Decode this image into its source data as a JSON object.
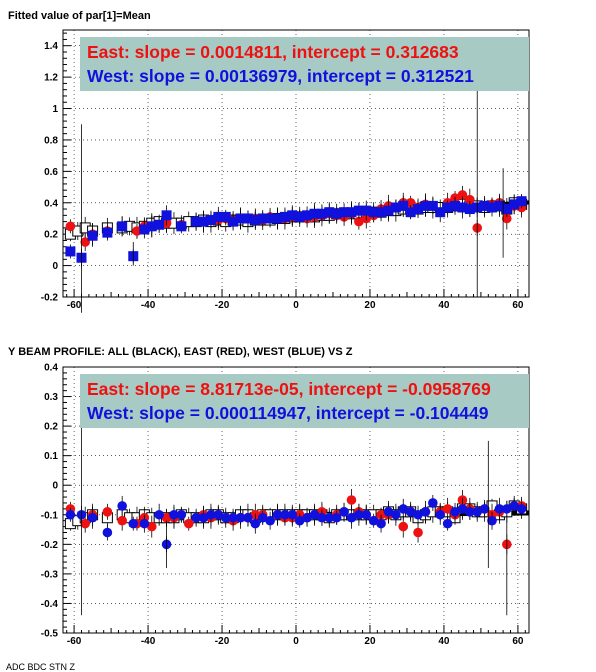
{
  "panels": [
    {
      "title": "Fitted value of par[1]=Mean",
      "ylim": [
        -0.2,
        1.5
      ],
      "yticks": [
        -0.2,
        0,
        0.2,
        0.4,
        0.6,
        0.8,
        1,
        1.2,
        1.4
      ],
      "ytick_labels": [
        "-0.2",
        "0",
        "0.2",
        "0.4",
        "0.6",
        "0.8",
        "1",
        "1.2",
        "1.4"
      ],
      "annotations": [
        {
          "text": "East: slope = 0.0014811, intercept = 0.312683",
          "color": "#ee1111"
        },
        {
          "text": "West: slope = 0.00136979, intercept = 0.312521",
          "color": "#1111dd"
        }
      ]
    },
    {
      "title": "Y BEAM PROFILE: ALL (BLACK), EAST (RED), WEST (BLUE) VS Z",
      "ylim": [
        -0.5,
        0.4
      ],
      "yticks": [
        -0.5,
        -0.4,
        -0.3,
        -0.2,
        -0.1,
        0,
        0.1,
        0.2,
        0.3,
        0.4
      ],
      "ytick_labels": [
        "-0.5",
        "-0.4",
        "-0.3",
        "-0.2",
        "-0.1",
        "0",
        "0.1",
        "0.2",
        "0.3",
        "0.4"
      ],
      "annotations": [
        {
          "text": "East: slope = 8.81713e-05, intercept = -0.0958769",
          "color": "#ee1111"
        },
        {
          "text": "West: slope = 0.000114947, intercept = -0.104449",
          "color": "#1111dd"
        }
      ]
    }
  ],
  "xlim": [
    -63,
    63
  ],
  "xticks": [
    -60,
    -40,
    -20,
    0,
    20,
    40,
    60
  ],
  "xtick_labels": [
    "-60",
    "-40",
    "-20",
    "0",
    "20",
    "40",
    "60"
  ],
  "bottom_text": "ADC  BDC  STN  Z         ",
  "chart_data": [
    {
      "type": "scatter",
      "title": "Fitted value of par[1]=Mean",
      "xlabel": "",
      "ylabel": "",
      "xlim": [
        -63,
        63
      ],
      "ylim": [
        -0.2,
        1.5
      ],
      "grid": true,
      "legend": "none",
      "fit_lines": [
        {
          "name": "East",
          "slope": 0.0014811,
          "intercept": 0.312683
        },
        {
          "name": "West",
          "slope": 0.00136979,
          "intercept": 0.312521
        }
      ],
      "series": [
        {
          "name": "All",
          "marker": "open-square",
          "color": "#000000",
          "x": [
            -61,
            -59,
            -57,
            -55,
            -51,
            -47,
            -45,
            -43,
            -41,
            -39,
            -37,
            -35,
            -33,
            -31,
            -29,
            -27,
            -25,
            -23,
            -21,
            -19,
            -17,
            -15,
            -13,
            -11,
            -9,
            -7,
            -5,
            -3,
            -1,
            1,
            3,
            5,
            7,
            9,
            11,
            13,
            15,
            17,
            19,
            21,
            23,
            25,
            27,
            29,
            31,
            33,
            35,
            37,
            39,
            41,
            43,
            45,
            47,
            49,
            51,
            53,
            55,
            57,
            59,
            61
          ],
          "y": [
            0.2,
            0.22,
            0.24,
            0.22,
            0.24,
            0.24,
            0.25,
            0.24,
            0.25,
            0.27,
            0.28,
            0.27,
            0.27,
            0.27,
            0.28,
            0.28,
            0.29,
            0.28,
            0.29,
            0.28,
            0.29,
            0.29,
            0.28,
            0.29,
            0.29,
            0.29,
            0.3,
            0.3,
            0.31,
            0.31,
            0.31,
            0.31,
            0.32,
            0.32,
            0.33,
            0.33,
            0.33,
            0.33,
            0.34,
            0.34,
            0.34,
            0.35,
            0.35,
            0.36,
            0.36,
            0.36,
            0.37,
            0.37,
            0.37,
            0.37,
            0.38,
            0.39,
            0.38,
            0.38,
            0.37,
            0.38,
            0.38,
            0.36,
            0.4,
            0.39
          ]
        },
        {
          "name": "East",
          "marker": "filled-circle",
          "color": "#ee1111",
          "x": [
            -61,
            -57,
            -55,
            -51,
            -47,
            -43,
            -41,
            -39,
            -37,
            -35,
            -31,
            -27,
            -25,
            -23,
            -21,
            -19,
            -17,
            -15,
            -13,
            -11,
            -9,
            -7,
            -5,
            -3,
            -1,
            1,
            3,
            5,
            7,
            9,
            11,
            13,
            15,
            17,
            19,
            21,
            23,
            25,
            27,
            29,
            31,
            33,
            35,
            37,
            41,
            43,
            45,
            47,
            49,
            51,
            53,
            55,
            57,
            59,
            61
          ],
          "y": [
            0.25,
            0.15,
            0.2,
            0.22,
            0.25,
            0.22,
            0.25,
            0.25,
            0.26,
            0.27,
            0.26,
            0.28,
            0.28,
            0.29,
            0.29,
            0.3,
            0.29,
            0.3,
            0.3,
            0.3,
            0.29,
            0.31,
            0.3,
            0.3,
            0.31,
            0.31,
            0.3,
            0.31,
            0.32,
            0.33,
            0.32,
            0.31,
            0.33,
            0.28,
            0.3,
            0.32,
            0.36,
            0.38,
            0.37,
            0.4,
            0.4,
            0.37,
            0.39,
            0.38,
            0.4,
            0.43,
            0.45,
            0.42,
            0.24,
            0.38,
            0.39,
            0.4,
            0.3,
            0.38,
            0.37
          ]
        },
        {
          "name": "West",
          "marker": "filled-square",
          "color": "#1111dd",
          "x": [
            -61,
            -58,
            -55,
            -51,
            -47,
            -44,
            -41,
            -39,
            -37,
            -35,
            -31,
            -27,
            -25,
            -23,
            -21,
            -19,
            -17,
            -15,
            -13,
            -11,
            -9,
            -7,
            -5,
            -3,
            -1,
            1,
            3,
            5,
            7,
            9,
            11,
            13,
            15,
            17,
            19,
            21,
            23,
            25,
            27,
            29,
            31,
            33,
            35,
            37,
            39,
            41,
            43,
            45,
            47,
            49,
            51,
            53,
            55,
            57,
            59,
            61
          ],
          "y": [
            0.09,
            0.05,
            0.19,
            0.21,
            0.25,
            0.06,
            0.23,
            0.25,
            0.26,
            0.32,
            0.25,
            0.28,
            0.28,
            0.29,
            0.31,
            0.31,
            0.28,
            0.3,
            0.3,
            0.29,
            0.3,
            0.3,
            0.3,
            0.31,
            0.32,
            0.31,
            0.32,
            0.33,
            0.33,
            0.34,
            0.33,
            0.34,
            0.34,
            0.35,
            0.35,
            0.34,
            0.34,
            0.35,
            0.37,
            0.38,
            0.34,
            0.36,
            0.38,
            0.38,
            0.34,
            0.37,
            0.38,
            0.37,
            0.36,
            0.37,
            0.38,
            0.37,
            0.38,
            0.36,
            0.39,
            0.41
          ]
        }
      ]
    },
    {
      "type": "scatter",
      "title": "Y BEAM PROFILE: ALL (BLACK), EAST (RED), WEST (BLUE) VS Z",
      "xlabel": "",
      "ylabel": "",
      "xlim": [
        -63,
        63
      ],
      "ylim": [
        -0.5,
        0.4
      ],
      "grid": true,
      "legend": "none",
      "fit_lines": [
        {
          "name": "East",
          "slope": 8.81713e-05,
          "intercept": -0.0958769
        },
        {
          "name": "West",
          "slope": 0.000114947,
          "intercept": -0.104449
        }
      ],
      "series": [
        {
          "name": "All",
          "marker": "open-square",
          "color": "#000000",
          "x": [
            -61,
            -59,
            -57,
            -55,
            -51,
            -47,
            -45,
            -43,
            -41,
            -39,
            -37,
            -35,
            -33,
            -31,
            -29,
            -27,
            -25,
            -23,
            -21,
            -19,
            -17,
            -15,
            -13,
            -11,
            -9,
            -7,
            -5,
            -3,
            -1,
            1,
            3,
            5,
            7,
            9,
            11,
            13,
            15,
            17,
            19,
            21,
            23,
            25,
            27,
            29,
            31,
            33,
            35,
            37,
            39,
            41,
            43,
            45,
            47,
            49,
            51,
            53,
            55,
            57,
            59,
            61
          ],
          "y": [
            -0.13,
            -0.12,
            -0.11,
            -0.1,
            -0.11,
            -0.1,
            -0.11,
            -0.11,
            -0.1,
            -0.11,
            -0.11,
            -0.11,
            -0.11,
            -0.1,
            -0.11,
            -0.11,
            -0.11,
            -0.1,
            -0.1,
            -0.11,
            -0.11,
            -0.1,
            -0.1,
            -0.11,
            -0.1,
            -0.1,
            -0.1,
            -0.1,
            -0.1,
            -0.1,
            -0.1,
            -0.1,
            -0.1,
            -0.11,
            -0.1,
            -0.1,
            -0.1,
            -0.1,
            -0.1,
            -0.1,
            -0.1,
            -0.09,
            -0.1,
            -0.09,
            -0.09,
            -0.11,
            -0.1,
            -0.09,
            -0.09,
            -0.09,
            -0.11,
            -0.08,
            -0.08,
            -0.09,
            -0.09,
            -0.07,
            -0.1,
            -0.09,
            -0.07,
            -0.08
          ]
        },
        {
          "name": "East",
          "marker": "filled-circle",
          "color": "#ee1111",
          "x": [
            -61,
            -57,
            -55,
            -51,
            -47,
            -43,
            -41,
            -39,
            -35,
            -33,
            -29,
            -25,
            -23,
            -21,
            -17,
            -15,
            -13,
            -11,
            -9,
            -5,
            -3,
            -1,
            1,
            3,
            7,
            11,
            13,
            15,
            17,
            19,
            23,
            25,
            29,
            31,
            33,
            35,
            39,
            41,
            43,
            45,
            47,
            51,
            53,
            55,
            57,
            59,
            61
          ],
          "y": [
            -0.08,
            -0.13,
            -0.1,
            -0.09,
            -0.12,
            -0.13,
            -0.11,
            -0.14,
            -0.11,
            -0.11,
            -0.13,
            -0.1,
            -0.11,
            -0.1,
            -0.12,
            -0.11,
            -0.11,
            -0.1,
            -0.1,
            -0.1,
            -0.11,
            -0.11,
            -0.1,
            -0.11,
            -0.09,
            -0.1,
            -0.09,
            -0.05,
            -0.09,
            -0.1,
            -0.1,
            -0.1,
            -0.14,
            -0.09,
            -0.16,
            -0.09,
            -0.09,
            -0.08,
            -0.1,
            -0.05,
            -0.08,
            -0.08,
            -0.1,
            -0.09,
            -0.2,
            -0.07,
            -0.07
          ]
        },
        {
          "name": "West",
          "marker": "filled-circle",
          "color": "#1111dd",
          "x": [
            -61,
            -58,
            -55,
            -51,
            -47,
            -44,
            -41,
            -37,
            -35,
            -33,
            -31,
            -27,
            -25,
            -23,
            -21,
            -19,
            -17,
            -15,
            -13,
            -11,
            -9,
            -7,
            -5,
            -3,
            -1,
            1,
            3,
            5,
            7,
            9,
            11,
            13,
            15,
            17,
            19,
            21,
            23,
            25,
            27,
            29,
            31,
            33,
            35,
            37,
            39,
            41,
            43,
            45,
            47,
            49,
            51,
            53,
            55,
            57,
            59,
            61
          ],
          "y": [
            -0.1,
            -0.1,
            -0.11,
            -0.16,
            -0.07,
            -0.13,
            -0.13,
            -0.1,
            -0.2,
            -0.1,
            -0.1,
            -0.11,
            -0.11,
            -0.1,
            -0.1,
            -0.11,
            -0.11,
            -0.11,
            -0.11,
            -0.13,
            -0.11,
            -0.12,
            -0.1,
            -0.1,
            -0.1,
            -0.12,
            -0.11,
            -0.1,
            -0.11,
            -0.11,
            -0.11,
            -0.09,
            -0.11,
            -0.1,
            -0.1,
            -0.12,
            -0.13,
            -0.09,
            -0.1,
            -0.08,
            -0.09,
            -0.1,
            -0.09,
            -0.06,
            -0.1,
            -0.13,
            -0.09,
            -0.08,
            -0.09,
            -0.09,
            -0.08,
            -0.12,
            -0.08,
            -0.08,
            -0.07,
            -0.08
          ]
        }
      ]
    }
  ]
}
